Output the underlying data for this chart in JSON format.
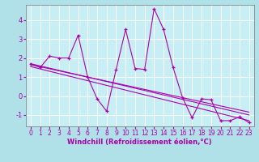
{
  "title": "",
  "xlabel": "Windchill (Refroidissement éolien,°C)",
  "ylabel": "",
  "bg_color": "#b0e0e8",
  "plot_bg_color": "#c8eef5",
  "line_color": "#aa00aa",
  "grid_color": "#ffffff",
  "spine_color": "#888888",
  "xlim": [
    -0.5,
    23.5
  ],
  "ylim": [
    -1.6,
    4.8
  ],
  "yticks": [
    -1,
    0,
    1,
    2,
    3,
    4
  ],
  "xticks": [
    0,
    1,
    2,
    3,
    4,
    5,
    6,
    7,
    8,
    9,
    10,
    11,
    12,
    13,
    14,
    15,
    16,
    17,
    18,
    19,
    20,
    21,
    22,
    23
  ],
  "data_x": [
    0,
    1,
    2,
    3,
    4,
    5,
    6,
    7,
    8,
    9,
    10,
    11,
    12,
    13,
    14,
    15,
    16,
    17,
    18,
    19,
    20,
    21,
    22,
    23
  ],
  "data_y": [
    1.7,
    1.5,
    2.1,
    2.0,
    2.0,
    3.2,
    1.0,
    -0.15,
    -0.8,
    1.4,
    3.5,
    1.45,
    1.4,
    4.6,
    3.5,
    1.5,
    -0.1,
    -1.15,
    -0.15,
    -0.2,
    -1.3,
    -1.3,
    -1.1,
    -1.4
  ],
  "trend1_x": [
    0,
    23
  ],
  "trend1_y": [
    1.7,
    -1.0
  ],
  "trend2_x": [
    0,
    23
  ],
  "trend2_y": [
    1.55,
    -1.3
  ],
  "trend3_x": [
    0,
    23
  ],
  "trend3_y": [
    1.65,
    -0.85
  ],
  "tick_fontsize": 5.5,
  "xlabel_fontsize": 6.0
}
